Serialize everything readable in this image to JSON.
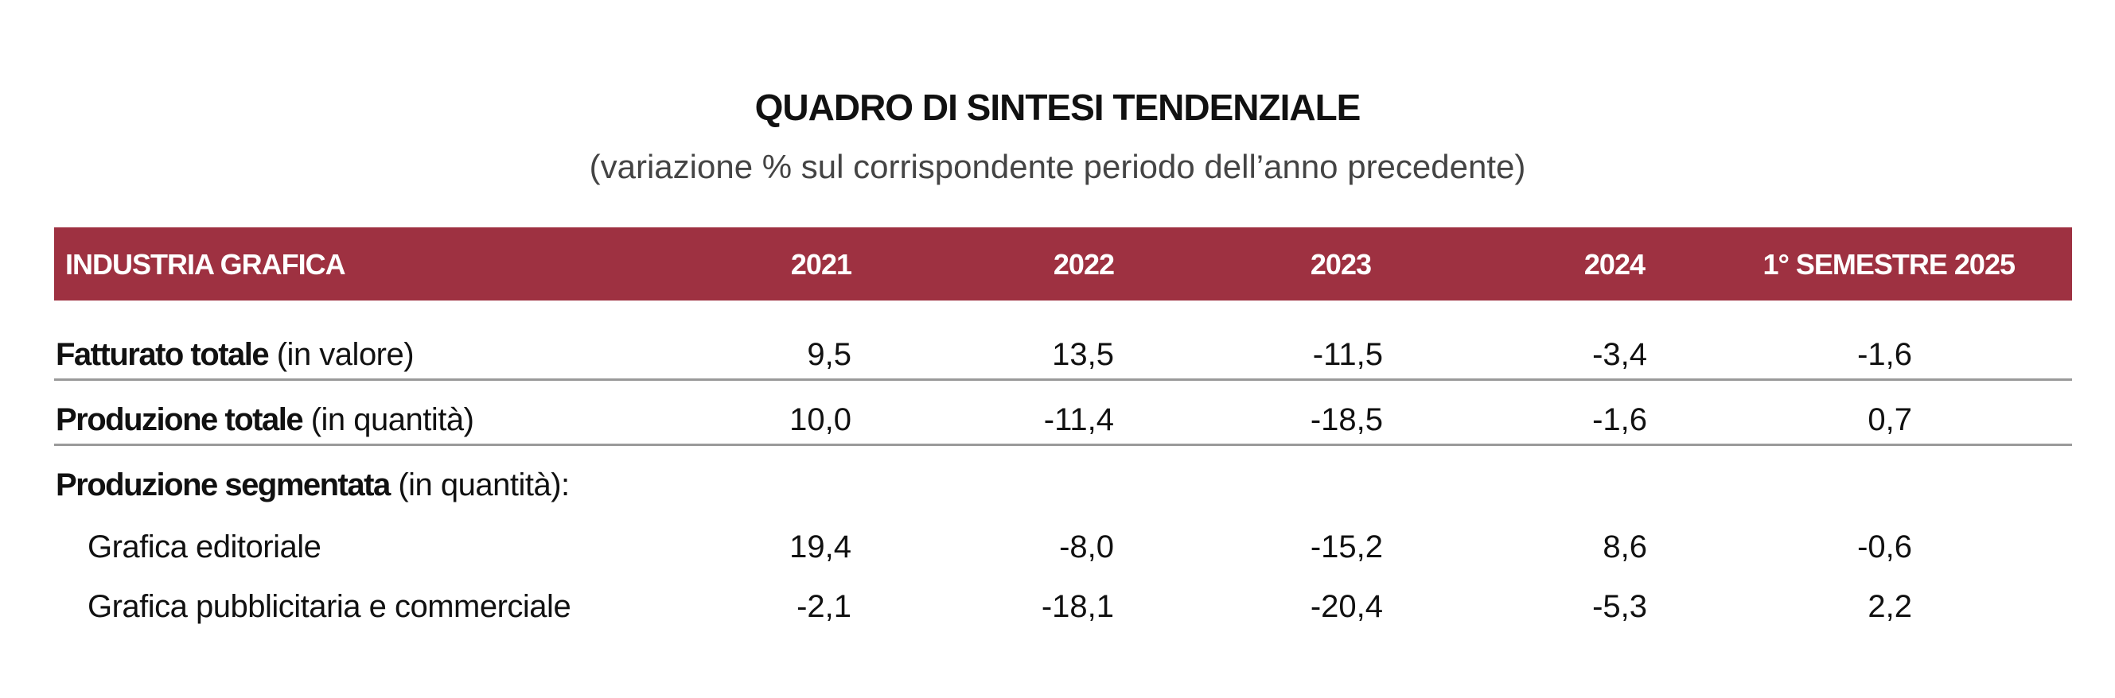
{
  "title": "QUADRO DI SINTESI TENDENZIALE",
  "subtitle": "(variazione % sul corrispondente periodo dell’anno precedente)",
  "header": [
    "INDUSTRIA GRAFICA",
    "2021",
    "2022",
    "2023",
    "2024",
    "1° SEMESTRE 2025"
  ],
  "rows": [
    {
      "bold": "Fatturato totale",
      "normal": " (in valore)",
      "values": [
        "9,5",
        "13,5",
        "-11,5",
        "-3,4",
        "-1,6"
      ]
    },
    {
      "bold": "Produzione totale",
      "normal": " (in quantità)",
      "values": [
        "10,0",
        "-11,4",
        "-18,5",
        "-1,6",
        "0,7"
      ]
    },
    {
      "bold": "Produzione segmentata",
      "normal": " (in quantità):"
    },
    {
      "normal": "Grafica editoriale",
      "values": [
        "19,4",
        "-8,0",
        "-15,2",
        "8,6",
        "-0,6"
      ]
    },
    {
      "normal": "Grafica pubblicitaria e commerciale",
      "values": [
        "-2,1",
        "-18,1",
        "-20,4",
        "-5,3",
        "2,2"
      ]
    }
  ],
  "colors": {
    "header_bg": "#9e3141",
    "rule": "#9a9a9a"
  }
}
